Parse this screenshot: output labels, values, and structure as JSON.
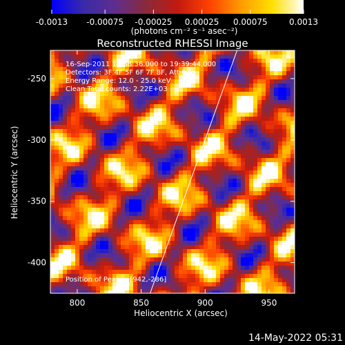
{
  "colorbar": {
    "tick_labels": [
      "-0.0013",
      "-0.00075",
      "-0.00025",
      "0.00025",
      "0.00075",
      "0.0013"
    ],
    "unit_label": "(photons cm⁻² s⁻¹ asec⁻²)",
    "range": [
      -0.0013,
      0.0013
    ],
    "colors": [
      "#0000ff",
      "#3a2aa8",
      "#5e2e8e",
      "#8a2a3a",
      "#c21a10",
      "#ff4000",
      "#ff9a00",
      "#ffe000",
      "#ffffff"
    ]
  },
  "chart_data": {
    "type": "heatmap",
    "title": "Reconstructed RHESSI Image",
    "xlabel": "Heliocentric X (arcsec)",
    "ylabel": "Heliocentric Y (arcsec)",
    "xlim": [
      779,
      970
    ],
    "ylim": [
      -425,
      -227
    ],
    "xticks": [
      800,
      850,
      900,
      950
    ],
    "yticks": [
      -250,
      -300,
      -350,
      -400
    ],
    "xtick_labels": [
      "800",
      "850",
      "900",
      "950"
    ],
    "ytick_labels": [
      "-250",
      "-300",
      "-350",
      "-400"
    ],
    "annotations": [
      "16-Sep-2011 19:38:36.000 to 19:39:44.000",
      "Detectors: 3F 4F 5F 6F 7F 8F, Att 0",
      "Energy Range: 12.0 - 25.0 keV",
      "Clean     Total counts: 2.22E+03",
      "Position of Peak = [942,-286]"
    ],
    "limb_line": {
      "x": [
        857,
        925
      ],
      "y": [
        -425,
        -227
      ]
    },
    "peak": {
      "x": 942,
      "y": -286
    }
  },
  "footer": {
    "timestamp": "14-May-2022 05:31"
  }
}
